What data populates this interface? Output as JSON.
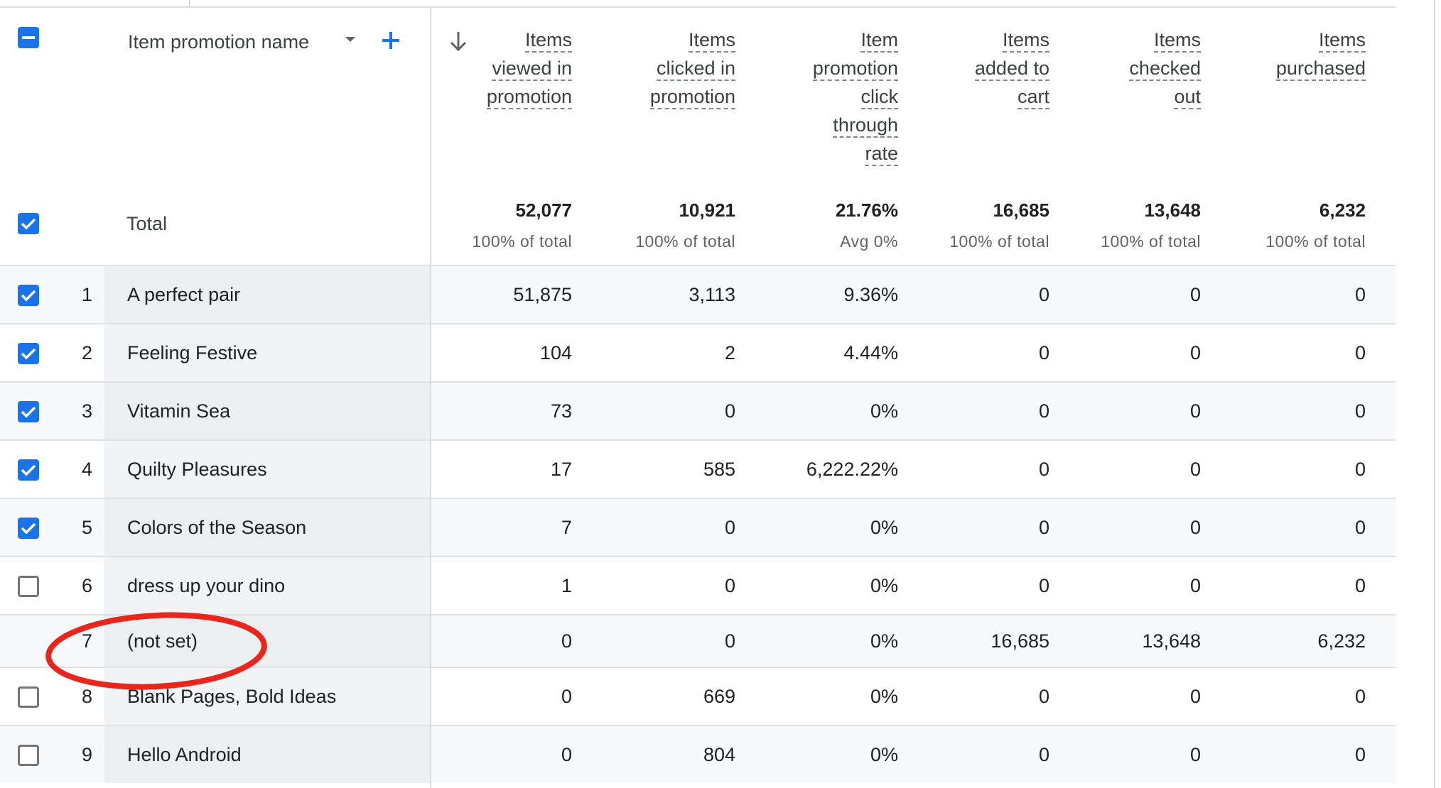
{
  "header": {
    "dimension_label": "Item promotion name",
    "columns": [
      {
        "key": "viewed",
        "lines": [
          "Items",
          "viewed in",
          "promotion"
        ]
      },
      {
        "key": "clicked",
        "lines": [
          "Items",
          "clicked in",
          "promotion"
        ]
      },
      {
        "key": "ctr",
        "lines": [
          "Item",
          "promotion",
          "click",
          "through",
          "rate"
        ]
      },
      {
        "key": "added",
        "lines": [
          "Items",
          "added to",
          "cart"
        ]
      },
      {
        "key": "checked",
        "lines": [
          "Items",
          "checked",
          "out"
        ]
      },
      {
        "key": "purchased",
        "lines": [
          "Items",
          "purchased"
        ]
      }
    ]
  },
  "totals": {
    "label": "Total",
    "values": [
      "52,077",
      "10,921",
      "21.76%",
      "16,685",
      "13,648",
      "6,232"
    ],
    "subs": [
      "100% of total",
      "100% of total",
      "Avg 0%",
      "100% of total",
      "100% of total",
      "100% of total"
    ]
  },
  "rows": [
    {
      "index": "1",
      "name": "A perfect pair",
      "checked": true,
      "values": [
        "51,875",
        "3,113",
        "9.36%",
        "0",
        "0",
        "0"
      ]
    },
    {
      "index": "2",
      "name": "Feeling Festive",
      "checked": true,
      "values": [
        "104",
        "2",
        "4.44%",
        "0",
        "0",
        "0"
      ]
    },
    {
      "index": "3",
      "name": "Vitamin Sea",
      "checked": true,
      "values": [
        "73",
        "0",
        "0%",
        "0",
        "0",
        "0"
      ]
    },
    {
      "index": "4",
      "name": "Quilty Pleasures",
      "checked": true,
      "values": [
        "17",
        "585",
        "6,222.22%",
        "0",
        "0",
        "0"
      ]
    },
    {
      "index": "5",
      "name": "Colors of the Season",
      "checked": true,
      "values": [
        "7",
        "0",
        "0%",
        "0",
        "0",
        "0"
      ]
    },
    {
      "index": "6",
      "name": "dress up your dino",
      "checked": false,
      "values": [
        "1",
        "0",
        "0%",
        "0",
        "0",
        "0"
      ]
    },
    {
      "index": "7",
      "name": "(not set)",
      "checked": null,
      "values": [
        "0",
        "0",
        "0%",
        "16,685",
        "13,648",
        "6,232"
      ]
    },
    {
      "index": "8",
      "name": "Blank Pages, Bold Ideas",
      "checked": false,
      "values": [
        "0",
        "669",
        "0%",
        "0",
        "0",
        "0"
      ]
    },
    {
      "index": "9",
      "name": "Hello Android",
      "checked": false,
      "values": [
        "0",
        "804",
        "0%",
        "0",
        "0",
        "0"
      ]
    }
  ],
  "colors": {
    "accent": "#1a73e8",
    "annotation": "#e8261c",
    "row_alt_bg": "#f8f9fa",
    "dim_bg": "#f1f3f4"
  },
  "icons": {
    "select_all": "minus-checkbox-icon",
    "dimension_menu": "caret-down-icon",
    "add_dimension": "plus-icon",
    "sort": "arrow-down-icon",
    "annotation": "red-ellipse-highlight"
  }
}
